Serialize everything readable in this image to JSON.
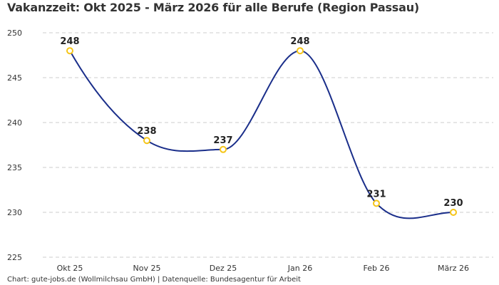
{
  "title": "Vakanzzeit: Okt 2025 - März 2026 für alle Berufe (Region Passau)",
  "footer": "Chart: gute-jobs.de (Wollmilchsau GmbH) | Datenquelle: Bundesagentur für Arbeit",
  "colors": {
    "line": "#1a2e8a",
    "marker": "#f5c518",
    "grid": "#cccccc"
  },
  "chart_data": {
    "type": "line",
    "title": "Vakanzzeit: Okt 2025 - März 2026 für alle Berufe (Region Passau)",
    "xlabel": "",
    "ylabel": "",
    "categories": [
      "Okt 25",
      "Nov 25",
      "Dez 25",
      "Jan 26",
      "Feb 26",
      "März 26"
    ],
    "values": [
      248,
      238,
      237,
      248,
      231,
      230
    ],
    "yticks": [
      225,
      230,
      235,
      240,
      245,
      250
    ],
    "ylim": [
      225,
      250
    ],
    "grid": true,
    "data_labels": true,
    "smooth": true
  }
}
